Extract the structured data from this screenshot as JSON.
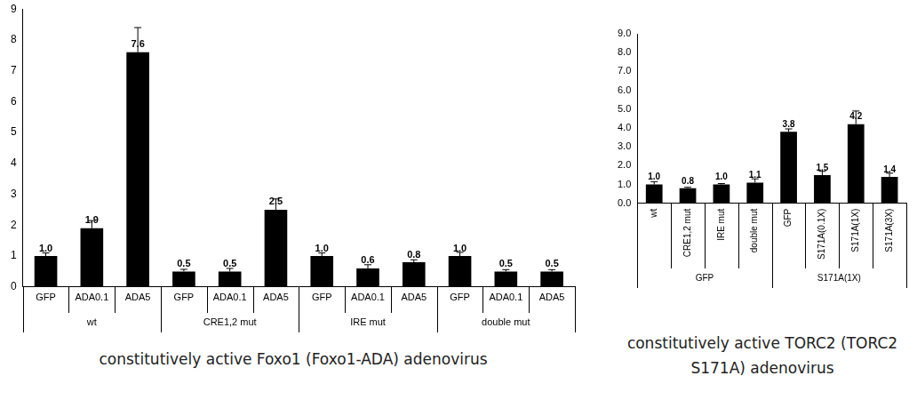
{
  "chart_data": [
    {
      "type": "bar",
      "xlabel": "constitutively active Foxo1 (Foxo1-ADA) adenovirus",
      "categories": [
        "GFP",
        "ADA0.1",
        "ADA5",
        "GFP",
        "ADA0.1",
        "ADA5",
        "GFP",
        "ADA0.1",
        "ADA5",
        "GFP",
        "ADA0.1",
        "ADA5"
      ],
      "groups": [
        "wt",
        "wt",
        "wt",
        "CRE1,2 mut",
        "CRE1,2 mut",
        "CRE1,2 mut",
        "IRE mut",
        "IRE mut",
        "IRE mut",
        "double mut",
        "double mut",
        "double mut"
      ],
      "values": [
        1.0,
        1.9,
        7.6,
        0.5,
        0.5,
        2.5,
        1.0,
        0.6,
        0.8,
        1.0,
        0.5,
        0.5
      ],
      "value_labels": [
        "1.0",
        "1.9",
        "7.6",
        "0.5",
        "0.5",
        "2.5",
        "1.0",
        "0.6",
        "0.8",
        "1.0",
        "0.5",
        "0.5"
      ],
      "errors": [
        0.1,
        0.25,
        0.8,
        0.07,
        0.1,
        0.35,
        0.1,
        0.12,
        0.08,
        0.12,
        0.06,
        0.06
      ],
      "color": "#000000",
      "ylim": [
        0,
        9
      ],
      "yticks": [
        0,
        1,
        2,
        3,
        4,
        5,
        6,
        7,
        8,
        9
      ],
      "grid": false,
      "data_labels": true
    },
    {
      "type": "bar",
      "xlabel": "constitutively active TORC2 (TORC2 S171A) adenovirus",
      "categories": [
        "wt",
        "CRE1,2 mut",
        "IRE mut",
        "double mut",
        "GFP",
        "S171A(0.1X)",
        "S171A(1X)",
        "S171A(3X)"
      ],
      "groups": [
        "GFP",
        "GFP",
        "GFP",
        "GFP",
        "S171A(1X)",
        "S171A(1X)",
        "S171A(1X)",
        "S171A(1X)"
      ],
      "values": [
        1.0,
        0.8,
        1.0,
        1.1,
        3.8,
        1.5,
        4.2,
        1.4
      ],
      "value_labels": [
        "1.0",
        "0.8",
        "1.0",
        "1.1",
        "3.8",
        "1.5",
        "4.2",
        "1.4"
      ],
      "errors": [
        0.15,
        0.05,
        0.05,
        0.2,
        0.15,
        0.2,
        0.7,
        0.2
      ],
      "color": "#000000",
      "ylim": [
        0,
        9
      ],
      "yticks": [
        {
          "value": 0,
          "label": "0.0"
        },
        {
          "value": 1,
          "label": "1.0"
        },
        {
          "value": 2,
          "label": "2.0"
        },
        {
          "value": 3,
          "label": "3.0"
        },
        {
          "value": 4,
          "label": "4.0"
        },
        {
          "value": 5,
          "label": "5.0"
        },
        {
          "value": 6,
          "label": "6.0"
        },
        {
          "value": 7,
          "label": "7.0"
        },
        {
          "value": 8,
          "label": "8.0"
        },
        {
          "value": 9,
          "label": "9.0"
        }
      ],
      "grid": false,
      "data_labels": true
    }
  ]
}
